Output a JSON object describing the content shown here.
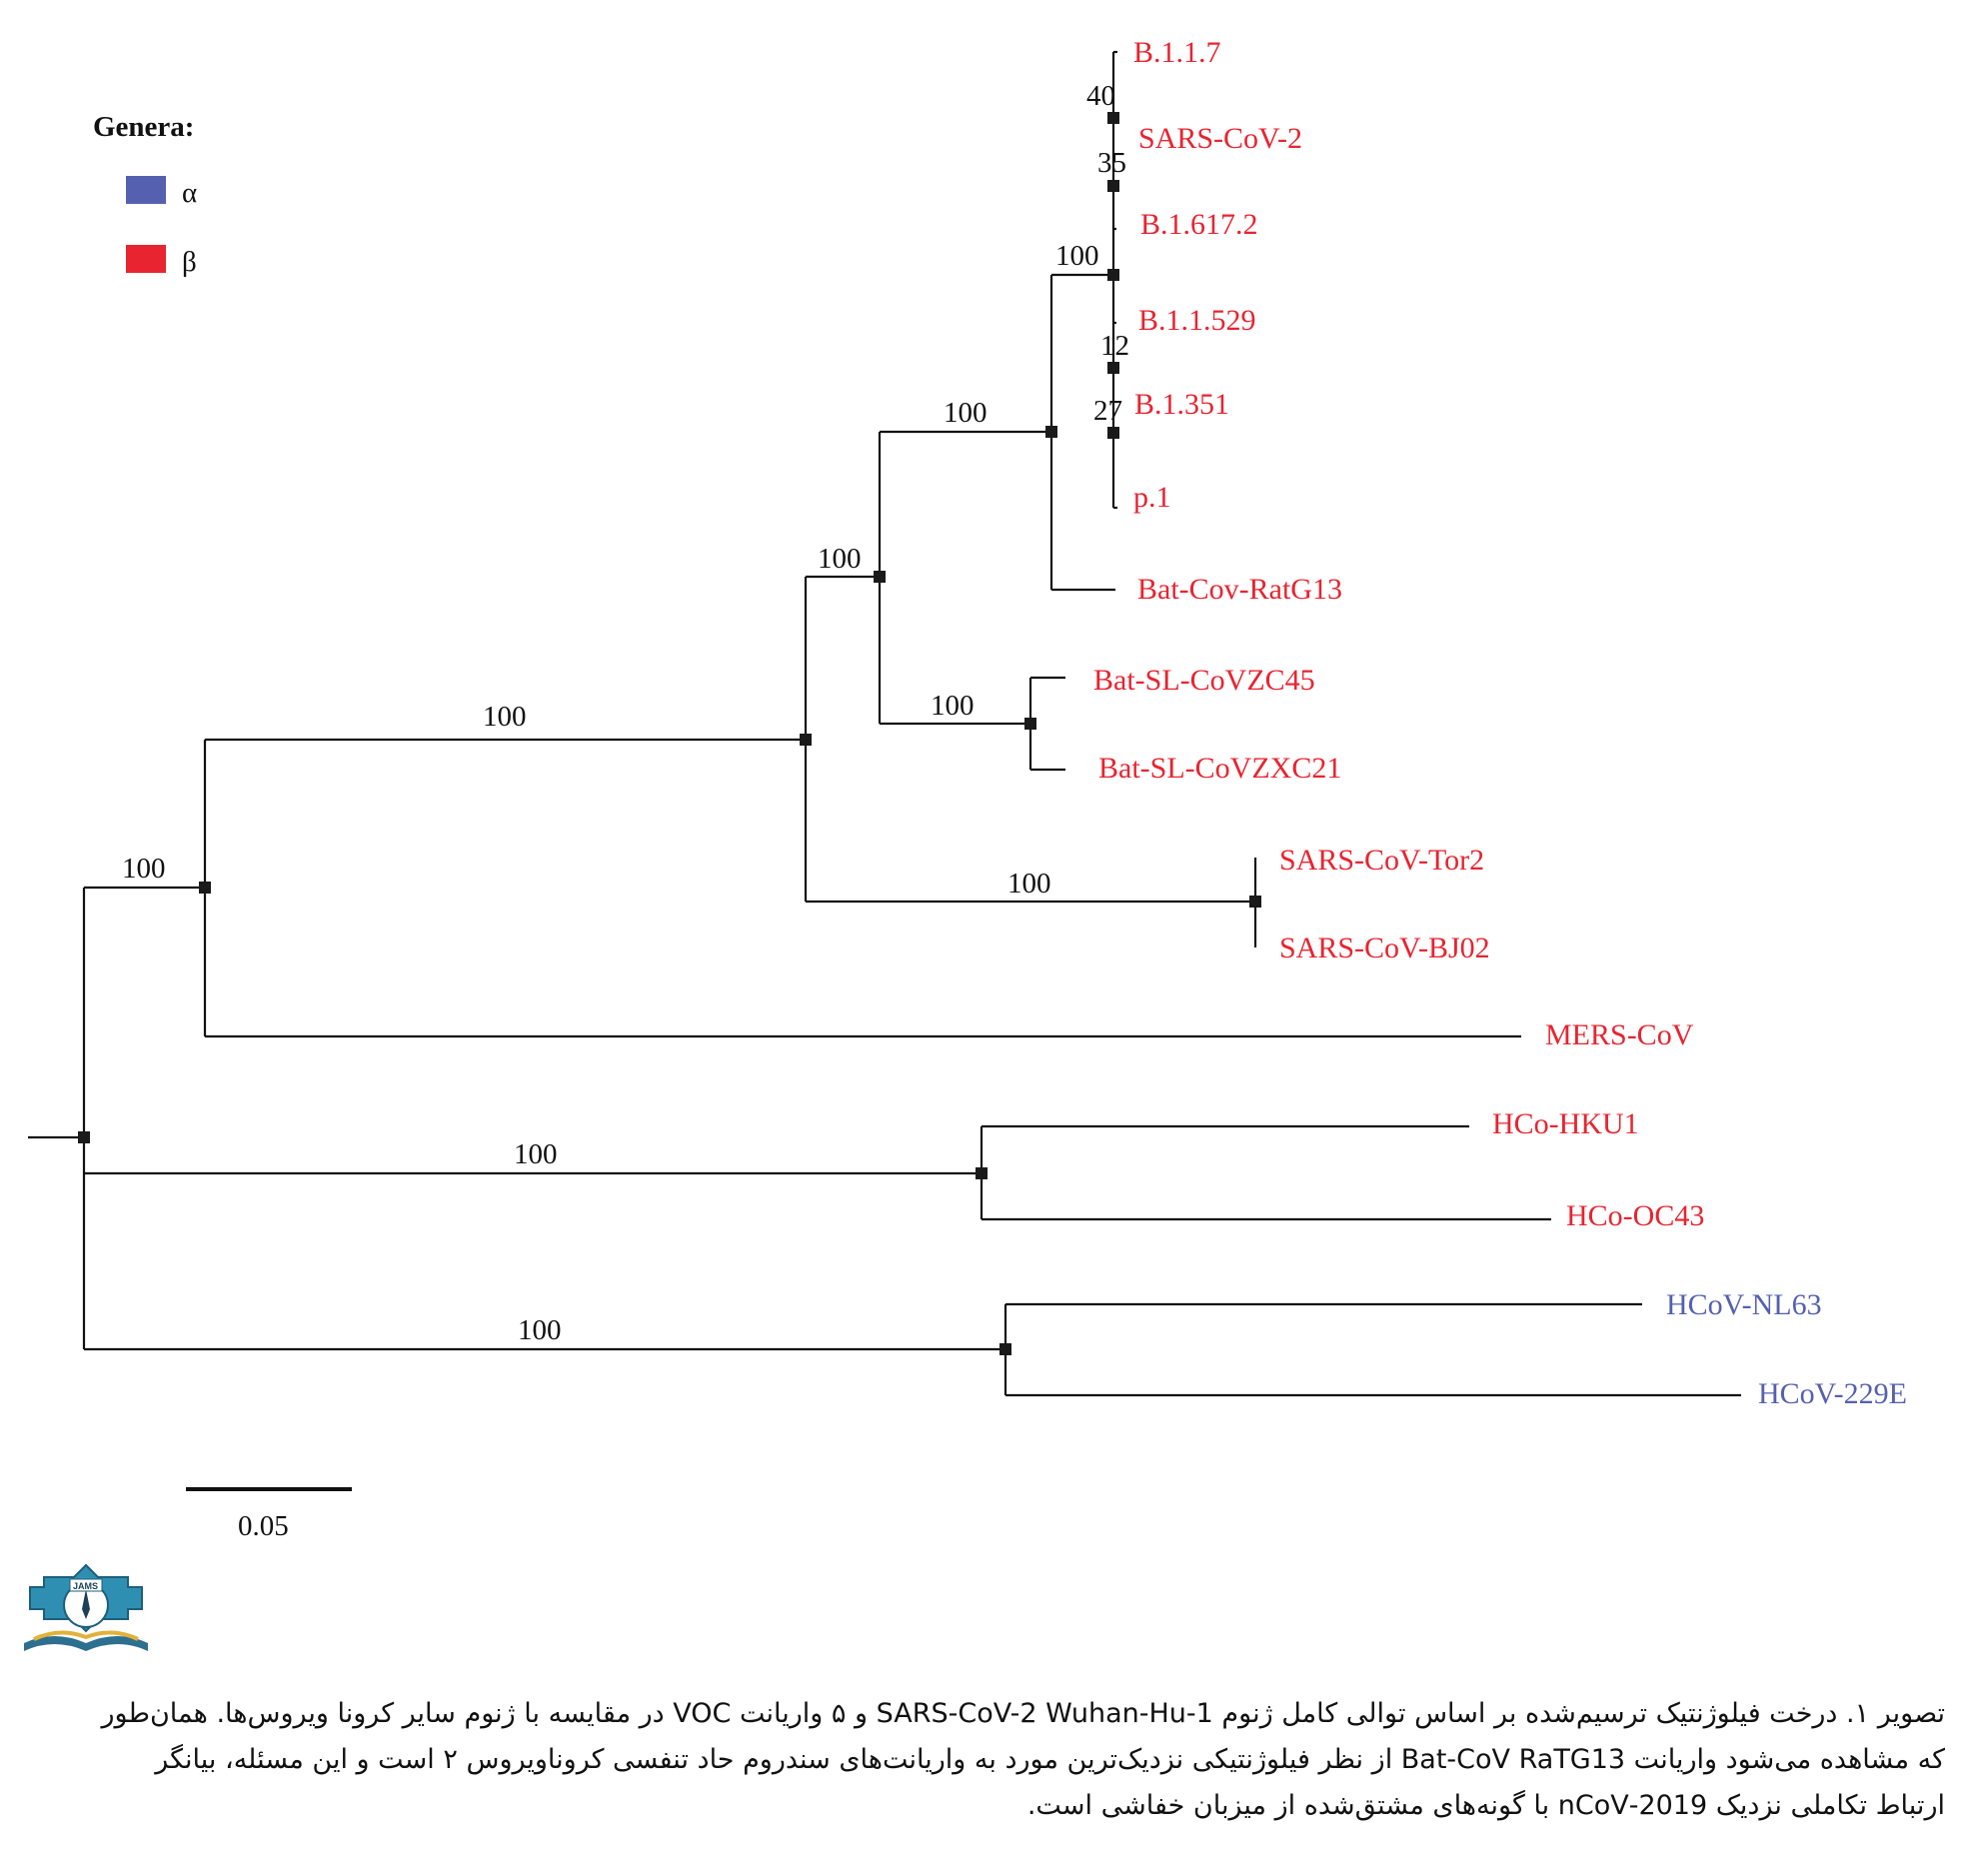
{
  "legend": {
    "title": "Genera:",
    "items": [
      {
        "label": "α",
        "color": "#5560b0"
      },
      {
        "label": "β",
        "color": "#e82430"
      }
    ]
  },
  "tree": {
    "nodes": [
      {
        "id": "root",
        "parent": null,
        "support": ""
      },
      {
        "id": "beta_main",
        "parent": "root",
        "support": "100"
      },
      {
        "id": "sarbeco",
        "parent": "beta_main",
        "support": "100"
      },
      {
        "id": "cov2_bats",
        "parent": "sarbeco",
        "support": "100"
      },
      {
        "id": "cov2_ratg",
        "parent": "cov2_bats",
        "support": "100"
      },
      {
        "id": "cov2_clade",
        "parent": "cov2_ratg",
        "support": "100"
      },
      {
        "id": "n40",
        "parent": "cov2_clade",
        "support": "40"
      },
      {
        "id": "n35",
        "parent": "cov2_clade",
        "support": "35"
      },
      {
        "id": "n12",
        "parent": "cov2_clade",
        "support": "12"
      },
      {
        "id": "n27",
        "parent": "cov2_clade",
        "support": "27"
      },
      {
        "id": "zc_clade",
        "parent": "cov2_bats",
        "support": "100"
      },
      {
        "id": "sars1_clade",
        "parent": "sarbeco",
        "support": "100"
      },
      {
        "id": "embeco",
        "parent": "root",
        "support": "100"
      },
      {
        "id": "alpha",
        "parent": "root",
        "support": "100"
      }
    ],
    "taxa": [
      {
        "id": "t1",
        "name": "B.1.1.7",
        "parent": "n40",
        "genus": "β"
      },
      {
        "id": "t2",
        "name": "SARS-CoV-2",
        "parent": "n35",
        "genus": "β"
      },
      {
        "id": "t3",
        "name": "B.1.617.2",
        "parent": "cov2_clade",
        "genus": "β"
      },
      {
        "id": "t4",
        "name": "B.1.1.529",
        "parent": "n12",
        "genus": "β"
      },
      {
        "id": "t5",
        "name": "B.1.351",
        "parent": "n27",
        "genus": "β"
      },
      {
        "id": "t6",
        "name": "p.1",
        "parent": "n27",
        "genus": "β"
      },
      {
        "id": "t7",
        "name": "Bat-Cov-RatG13",
        "parent": "cov2_ratg",
        "genus": "β"
      },
      {
        "id": "t8",
        "name": "Bat-SL-CoVZC45",
        "parent": "zc_clade",
        "genus": "β"
      },
      {
        "id": "t9",
        "name": "Bat-SL-CoVZXC21",
        "parent": "zc_clade",
        "genus": "β"
      },
      {
        "id": "t10",
        "name": "SARS-CoV-Tor2",
        "parent": "sars1_clade",
        "genus": "β"
      },
      {
        "id": "t11",
        "name": "SARS-CoV-BJ02",
        "parent": "sars1_clade",
        "genus": "β"
      },
      {
        "id": "t12",
        "name": "MERS-CoV",
        "parent": "beta_main",
        "genus": "β"
      },
      {
        "id": "t13",
        "name": "HCo-HKU1",
        "parent": "embeco",
        "genus": "β"
      },
      {
        "id": "t14",
        "name": "HCo-OC43",
        "parent": "embeco",
        "genus": "β"
      },
      {
        "id": "t15",
        "name": "HCoV-NL63",
        "parent": "alpha",
        "genus": "α"
      },
      {
        "id": "t16",
        "name": "HCoV-229E",
        "parent": "alpha",
        "genus": "α"
      }
    ]
  },
  "scale_bar": {
    "label": "0.05"
  },
  "caption": {
    "lines": [
      "تصویر ۱. درخت فیلوژنتیک ترسیم‌شده بر اساس توالی کامل ژنوم SARS-CoV-2 Wuhan-Hu-1 و ۵ واریانت VOC در مقایسه با ژنوم سایر کرونا ویروس‌ها. همان‌طور",
      "که مشاهده می‌شود واریانت Bat-CoV RaTG13 از نظر فیلوژنتیکی نزدیک‌ترین مورد به واریانت‌های سندروم حاد تنفسی کروناویروس ۲ است و این مسئله، بیانگر",
      "ارتباط تکاملی نزدیک 2019-nCoV با گونه‌های مشتق‌شده از میزبان خفاشی است."
    ]
  }
}
